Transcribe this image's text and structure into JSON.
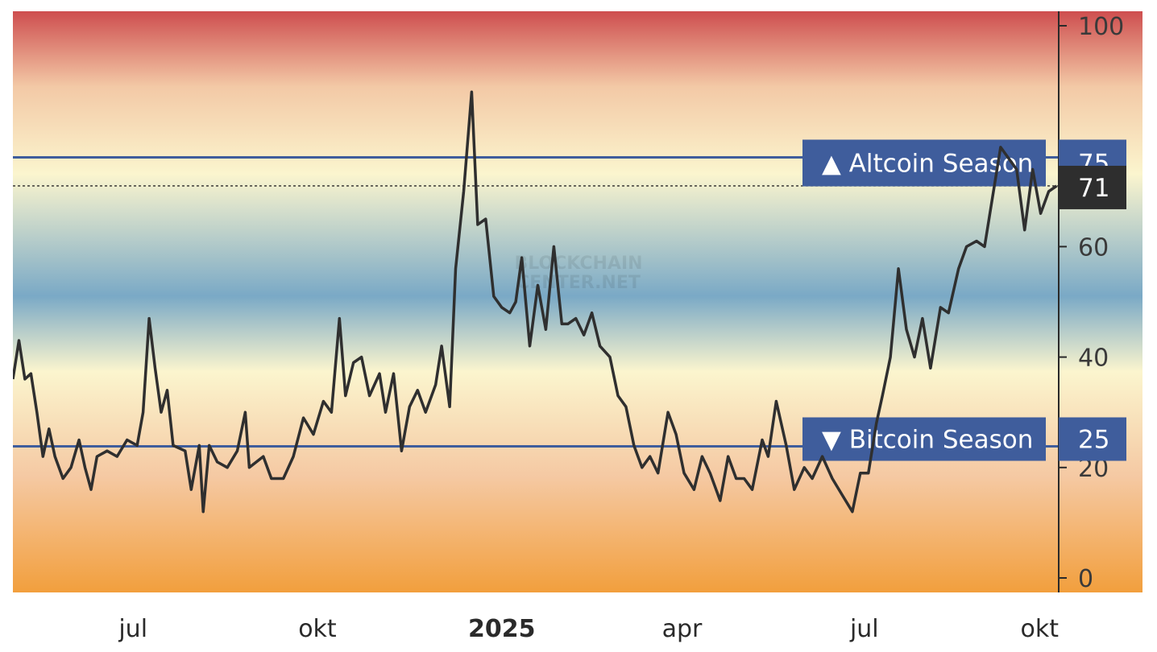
{
  "colors": {
    "threshold_line": "#3f5d9c",
    "label_bg": "#3f5d9c",
    "current_bg": "#2e2e2e",
    "series_line": "#2f2f2f",
    "gradient": [
      "#ce4e4f",
      "#f3c9a6",
      "#fbf5ce",
      "#7aa9c6",
      "#fbf5ce",
      "#f5c9a3",
      "#f29f3d"
    ]
  },
  "watermark": {
    "line1": "BLOCKCHAIN",
    "line2": "CENTER.NET"
  },
  "labels": {
    "altcoin": "▲ Altcoin Season",
    "bitcoin": "▼ Bitcoin Season",
    "altcoin_value": "75",
    "bitcoin_value": "25",
    "current_value": "71"
  },
  "chart_data": {
    "type": "line",
    "title": "",
    "xlabel": "",
    "ylabel": "",
    "ylim": [
      0,
      100
    ],
    "y_ticks": [
      0,
      20,
      40,
      60,
      100
    ],
    "x_ticks": [
      {
        "date": "2024-07-01",
        "label": "jul",
        "bold": false
      },
      {
        "date": "2024-10-01",
        "label": "okt",
        "bold": false
      },
      {
        "date": "2025-01-01",
        "label": "2025",
        "bold": true
      },
      {
        "date": "2025-04-01",
        "label": "apr",
        "bold": false
      },
      {
        "date": "2025-07-01",
        "label": "jul",
        "bold": false
      },
      {
        "date": "2025-10-01",
        "label": "okt",
        "bold": false
      }
    ],
    "x_range": [
      "2024-05-02",
      "2025-10-06"
    ],
    "thresholds": [
      {
        "name": "Altcoin Season",
        "value": 75
      },
      {
        "name": "Bitcoin Season",
        "value": 25
      }
    ],
    "current_value": 71,
    "grid": false,
    "series": [
      {
        "points": [
          [
            "2024-05-02",
            36
          ],
          [
            "2024-05-05",
            43
          ],
          [
            "2024-05-08",
            36
          ],
          [
            "2024-05-11",
            37
          ],
          [
            "2024-05-14",
            30
          ],
          [
            "2024-05-17",
            22
          ],
          [
            "2024-05-20",
            27
          ],
          [
            "2024-05-23",
            22
          ],
          [
            "2024-05-27",
            18
          ],
          [
            "2024-05-31",
            20
          ],
          [
            "2024-06-04",
            25
          ],
          [
            "2024-06-07",
            20
          ],
          [
            "2024-06-10",
            16
          ],
          [
            "2024-06-13",
            22
          ],
          [
            "2024-06-18",
            23
          ],
          [
            "2024-06-23",
            22
          ],
          [
            "2024-06-28",
            25
          ],
          [
            "2024-07-03",
            24
          ],
          [
            "2024-07-06",
            30
          ],
          [
            "2024-07-09",
            47
          ],
          [
            "2024-07-12",
            38
          ],
          [
            "2024-07-15",
            30
          ],
          [
            "2024-07-18",
            34
          ],
          [
            "2024-07-21",
            24
          ],
          [
            "2024-07-27",
            23
          ],
          [
            "2024-07-30",
            16
          ],
          [
            "2024-08-03",
            24
          ],
          [
            "2024-08-05",
            12
          ],
          [
            "2024-08-08",
            24
          ],
          [
            "2024-08-12",
            21
          ],
          [
            "2024-08-17",
            20
          ],
          [
            "2024-08-22",
            23
          ],
          [
            "2024-08-26",
            30
          ],
          [
            "2024-08-28",
            20
          ],
          [
            "2024-09-04",
            22
          ],
          [
            "2024-09-08",
            18
          ],
          [
            "2024-09-14",
            18
          ],
          [
            "2024-09-19",
            22
          ],
          [
            "2024-09-24",
            29
          ],
          [
            "2024-09-29",
            26
          ],
          [
            "2024-10-04",
            32
          ],
          [
            "2024-10-08",
            30
          ],
          [
            "2024-10-12",
            47
          ],
          [
            "2024-10-15",
            33
          ],
          [
            "2024-10-19",
            39
          ],
          [
            "2024-10-23",
            40
          ],
          [
            "2024-10-27",
            33
          ],
          [
            "2024-11-01",
            37
          ],
          [
            "2024-11-04",
            30
          ],
          [
            "2024-11-08",
            37
          ],
          [
            "2024-11-12",
            23
          ],
          [
            "2024-11-16",
            31
          ],
          [
            "2024-11-20",
            34
          ],
          [
            "2024-11-24",
            30
          ],
          [
            "2024-11-29",
            35
          ],
          [
            "2024-12-02",
            42
          ],
          [
            "2024-12-06",
            31
          ],
          [
            "2024-12-09",
            56
          ],
          [
            "2024-12-13",
            70
          ],
          [
            "2024-12-17",
            88
          ],
          [
            "2024-12-20",
            64
          ],
          [
            "2024-12-24",
            65
          ],
          [
            "2024-12-28",
            51
          ],
          [
            "2025-01-01",
            49
          ],
          [
            "2025-01-05",
            48
          ],
          [
            "2025-01-08",
            50
          ],
          [
            "2025-01-11",
            58
          ],
          [
            "2025-01-15",
            42
          ],
          [
            "2025-01-19",
            53
          ],
          [
            "2025-01-23",
            45
          ],
          [
            "2025-01-27",
            60
          ],
          [
            "2025-01-31",
            46
          ],
          [
            "2025-02-03",
            46
          ],
          [
            "2025-02-07",
            47
          ],
          [
            "2025-02-11",
            44
          ],
          [
            "2025-02-15",
            48
          ],
          [
            "2025-02-19",
            42
          ],
          [
            "2025-02-24",
            40
          ],
          [
            "2025-02-28",
            33
          ],
          [
            "2025-03-04",
            31
          ],
          [
            "2025-03-08",
            24
          ],
          [
            "2025-03-12",
            20
          ],
          [
            "2025-03-16",
            22
          ],
          [
            "2025-03-20",
            19
          ],
          [
            "2025-03-25",
            30
          ],
          [
            "2025-03-29",
            26
          ],
          [
            "2025-04-02",
            19
          ],
          [
            "2025-04-07",
            16
          ],
          [
            "2025-04-11",
            22
          ],
          [
            "2025-04-15",
            19
          ],
          [
            "2025-04-20",
            14
          ],
          [
            "2025-04-24",
            22
          ],
          [
            "2025-04-28",
            18
          ],
          [
            "2025-05-02",
            18
          ],
          [
            "2025-05-06",
            16
          ],
          [
            "2025-05-11",
            25
          ],
          [
            "2025-05-14",
            22
          ],
          [
            "2025-05-18",
            32
          ],
          [
            "2025-05-23",
            24
          ],
          [
            "2025-05-27",
            16
          ],
          [
            "2025-06-01",
            20
          ],
          [
            "2025-06-05",
            18
          ],
          [
            "2025-06-10",
            22
          ],
          [
            "2025-06-15",
            18
          ],
          [
            "2025-06-20",
            15
          ],
          [
            "2025-06-25",
            12
          ],
          [
            "2025-06-29",
            19
          ],
          [
            "2025-07-03",
            19
          ],
          [
            "2025-07-07",
            28
          ],
          [
            "2025-07-10",
            33
          ],
          [
            "2025-07-14",
            40
          ],
          [
            "2025-07-18",
            56
          ],
          [
            "2025-07-22",
            45
          ],
          [
            "2025-07-26",
            40
          ],
          [
            "2025-07-30",
            47
          ],
          [
            "2025-08-03",
            38
          ],
          [
            "2025-08-08",
            49
          ],
          [
            "2025-08-12",
            48
          ],
          [
            "2025-08-17",
            56
          ],
          [
            "2025-08-21",
            60
          ],
          [
            "2025-08-26",
            61
          ],
          [
            "2025-08-30",
            60
          ],
          [
            "2025-09-03",
            69
          ],
          [
            "2025-09-07",
            78
          ],
          [
            "2025-09-11",
            76
          ],
          [
            "2025-09-15",
            74
          ],
          [
            "2025-09-19",
            63
          ],
          [
            "2025-09-23",
            74
          ],
          [
            "2025-09-27",
            66
          ],
          [
            "2025-10-01",
            70
          ],
          [
            "2025-10-05",
            71
          ]
        ]
      }
    ]
  }
}
